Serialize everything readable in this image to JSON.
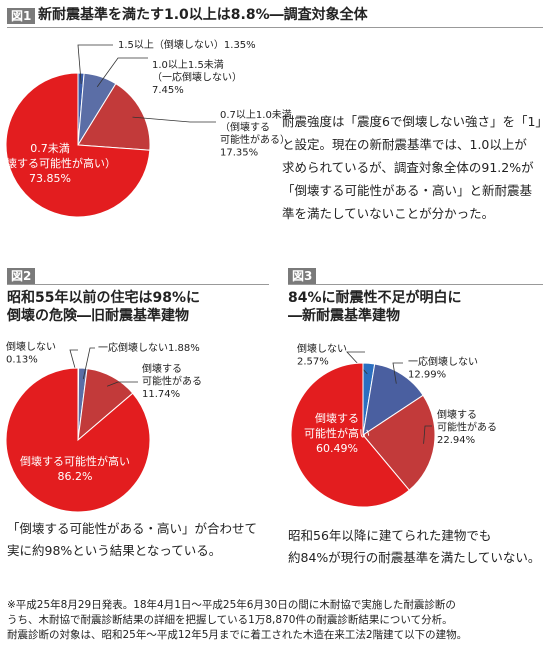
{
  "fig1": {
    "tag": "図1",
    "title": "新耐震基準を満たす1.0以上は8.8%―調査対象全体",
    "description": [
      "耐震強度は「震度6で倒壊しない強さ」を「1」",
      "と設定。現在の新耐震基準では、1.0以上が",
      "求められているが、調査対象全体の91.2%が",
      "「倒壊する可能性がある・高い」と新耐震基",
      "準を満たしていないことが分かった。"
    ]
  },
  "fig2": {
    "tag": "図2",
    "title_lines": [
      "昭和55年以前の住宅は98%に",
      "倒壊の危険―旧耐震基準建物"
    ],
    "caption": [
      "「倒壊する可能性がある・高い」が合わせて",
      "実に約98%という結果となっている。"
    ]
  },
  "fig3": {
    "tag": "図3",
    "title_lines": [
      "84%に耐震性不足が明白に",
      "―新耐震基準建物"
    ],
    "caption": [
      "昭和56年以降に建てられた建物でも",
      "約84%が現行の耐震基準を満たしていない。"
    ]
  },
  "note": [
    "※平成25年8月29日発表。18年4月1日～平成25年6月30日の間に木耐協で実施した耐震診断の",
    "うち、木耐協で耐震診断結果の詳細を把握している1万8,870件の耐震診断結果について分析。",
    "耐震診断の対象は、昭和25年～平成12年5月までに着工された木造在来工法2階建て以下の建物。"
  ],
  "chart_data": [
    {
      "type": "pie",
      "title": "新耐震基準を満たす1.0以上は8.8%―調査対象全体",
      "slices": [
        {
          "label": [
            "1.5以上（倒壊しない）1.35%"
          ],
          "value": 1.35,
          "color": "#3a5ba8"
        },
        {
          "label": [
            "1.0以上1.5未満",
            "（一応倒壊しない）",
            "7.45%"
          ],
          "value": 7.45,
          "color": "#5b6ea6"
        },
        {
          "label": [
            "0.7以上1.0未満",
            "（倒壊する",
            "可能性がある）",
            "17.35%"
          ],
          "value": 17.35,
          "color": "#c23a3a"
        },
        {
          "label": [
            "0.7未満",
            "（倒壊する可能性が高い）",
            "73.85%"
          ],
          "value": 73.85,
          "color": "#e31d1f"
        }
      ]
    },
    {
      "type": "pie",
      "title": "昭和55年以前の住宅は98%に倒壊の危険―旧耐震基準建物",
      "slices": [
        {
          "label": [
            "倒壊しない",
            "0.13%"
          ],
          "value": 0.13,
          "color": "#3a5ba8"
        },
        {
          "label": [
            "一応倒壊しない1.88%"
          ],
          "value": 1.88,
          "color": "#5b6ea6"
        },
        {
          "label": [
            "倒壊する",
            "可能性がある",
            "11.74%"
          ],
          "value": 11.74,
          "color": "#c23a3a"
        },
        {
          "label": [
            "倒壊する可能性が高い",
            "86.2%"
          ],
          "value": 86.2,
          "color": "#e31d1f"
        }
      ]
    },
    {
      "type": "pie",
      "title": "84%に耐震性不足が明白に―新耐震基準建物",
      "slices": [
        {
          "label": [
            "倒壊しない",
            "2.57%"
          ],
          "value": 2.57,
          "color": "#2b6fc0"
        },
        {
          "label": [
            "一応倒壊しない",
            "12.99%"
          ],
          "value": 12.99,
          "color": "#4a5fa0"
        },
        {
          "label": [
            "倒壊する",
            "可能性がある",
            "22.94%"
          ],
          "value": 22.94,
          "color": "#c23a3a"
        },
        {
          "label": [
            "倒壊する",
            "可能性が高い",
            "60.49%"
          ],
          "value": 60.49,
          "color": "#e31d1f"
        }
      ]
    }
  ]
}
